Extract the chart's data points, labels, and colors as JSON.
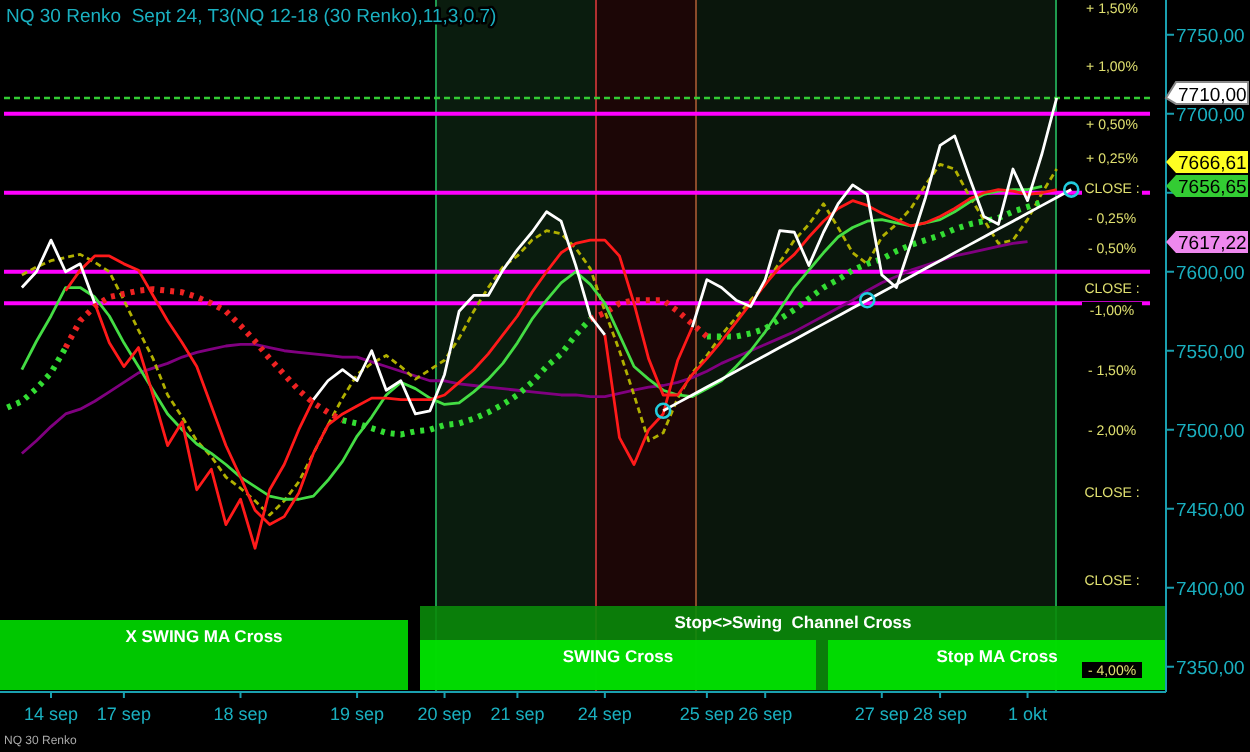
{
  "chart_data": {
    "type": "line",
    "title": "NQ 30 Renko  Sept 24, T3(NQ 12-18 (30 Renko),11,3,0.7)",
    "categories": [
      null,
      null,
      null,
      "14 sep",
      null,
      null,
      null,
      null,
      "17 sep",
      null,
      null,
      null,
      null,
      null,
      null,
      null,
      "18 sep",
      null,
      null,
      null,
      null,
      null,
      null,
      null,
      "19 sep",
      null,
      null,
      null,
      null,
      null,
      "20 sep",
      null,
      null,
      null,
      null,
      "21 sep",
      null,
      null,
      null,
      null,
      null,
      "24 sep",
      null,
      null,
      null,
      null,
      null,
      null,
      "25 sep",
      null,
      null,
      null,
      "26 sep",
      null,
      null,
      null,
      null,
      null,
      null,
      null,
      "27 sep",
      null,
      null,
      null,
      "28 sep",
      null,
      null,
      null,
      null,
      null,
      "1 okt",
      null,
      null,
      null,
      null,
      null,
      null,
      null,
      null,
      null
    ],
    "ylim": [
      7334,
      7772
    ],
    "yticks": [
      {
        "value": 7350,
        "label": "7350,00"
      },
      {
        "value": 7400,
        "label": "7400,00"
      },
      {
        "value": 7450,
        "label": "7450,00"
      },
      {
        "value": 7500,
        "label": "7500,00"
      },
      {
        "value": 7550,
        "label": "7550,00"
      },
      {
        "value": 7600,
        "label": "7600,00"
      },
      {
        "value": 7650,
        "label": null
      },
      {
        "value": 7700,
        "label": "7700,00"
      },
      {
        "value": 7750,
        "label": "7750,00"
      }
    ],
    "series": [
      {
        "color": "#800080",
        "values": [
          null,
          7485,
          7493,
          7502,
          7510,
          7513,
          7518,
          7524,
          7530,
          7536,
          7539,
          7542,
          7546,
          7549,
          7551,
          7553,
          7554,
          7554,
          7552,
          7550,
          7549,
          7548,
          7547,
          7546,
          7546,
          7543,
          7540,
          7537,
          7534,
          7531,
          7531,
          7529,
          7528,
          7527,
          7526,
          7525,
          7524,
          7523,
          7522,
          7522,
          7521,
          7521,
          7523,
          7525,
          7527,
          7528,
          7530,
          7533,
          7537,
          7542,
          7546,
          7550,
          7554,
          7558,
          7562,
          7567,
          7572,
          7577,
          7582,
          7588,
          7593,
          7597,
          7601,
          7604,
          7607,
          7610,
          7612,
          7614,
          7616,
          7618,
          7619,
          null,
          null,
          null,
          null,
          null,
          null,
          null,
          null,
          null
        ]
      },
      {
        "color": "#b0b000",
        "line_style": "dashed",
        "values": [
          null,
          7598,
          7603,
          7607,
          7609,
          7611,
          7606,
          7600,
          7582,
          7563,
          7545,
          7522,
          7508,
          7493,
          7483,
          7470,
          7463,
          7455,
          7446,
          7455,
          7467,
          7485,
          7503,
          7520,
          7535,
          7542,
          7547,
          7540,
          7532,
          7538,
          7544,
          7558,
          7575,
          7590,
          7603,
          7610,
          7620,
          7626,
          7624,
          7615,
          7602,
          7575,
          7550,
          7522,
          7493,
          7498,
          7520,
          7536,
          7547,
          7560,
          7571,
          7582,
          7592,
          7606,
          7620,
          7630,
          7643,
          7628,
          7612,
          7605,
          7622,
          7630,
          7640,
          7655,
          7668,
          7665,
          7648,
          7633,
          7618,
          7620,
          7633,
          7650,
          7665,
          null,
          null,
          null,
          null,
          null,
          null,
          null
        ]
      },
      {
        "color": "#33dd33",
        "line_style": "dotted",
        "values": [
          7514,
          7518,
          7526,
          7536,
          7552,
          null,
          null,
          null,
          null,
          null,
          null,
          null,
          null,
          null,
          null,
          null,
          null,
          null,
          null,
          null,
          null,
          null,
          null,
          7506,
          7504,
          7501,
          7498,
          7497,
          7499,
          7500,
          7503,
          7504,
          7507,
          7511,
          7516,
          7522,
          7530,
          7540,
          7548,
          7560,
          7570,
          null,
          null,
          null,
          null,
          null,
          null,
          null,
          7559,
          7559,
          7559,
          7561,
          7564,
          7570,
          7576,
          7583,
          7590,
          7595,
          7601,
          7605,
          7608,
          7613,
          7617,
          7620,
          7623,
          7627,
          7630,
          7632,
          7634,
          7638,
          7641,
          7644,
          null,
          null,
          null,
          null,
          null,
          null,
          null,
          null
        ]
      },
      {
        "color": "#ee2222",
        "line_style": "dotted",
        "values": [
          null,
          null,
          null,
          null,
          7552,
          7569,
          7578,
          7584,
          7586,
          7588,
          7589,
          7588,
          7587,
          7584,
          7580,
          7575,
          7566,
          7556,
          7545,
          7535,
          7525,
          7517,
          7511,
          7506,
          null,
          null,
          null,
          null,
          null,
          null,
          null,
          null,
          null,
          null,
          null,
          null,
          null,
          null,
          null,
          null,
          7570,
          7574,
          7580,
          7582,
          7582,
          7582,
          7575,
          7567,
          7559,
          null,
          null,
          null,
          null,
          null,
          null,
          null,
          null,
          null,
          null,
          null,
          null,
          null,
          null,
          null,
          null,
          null,
          null,
          null,
          null,
          null,
          null,
          null,
          null,
          null,
          null,
          null,
          null,
          null,
          null,
          null
        ]
      },
      {
        "color": "#44dd44",
        "values": [
          null,
          7538,
          7556,
          7572,
          7590,
          7590,
          7584,
          7572,
          7555,
          7540,
          7525,
          7510,
          7500,
          7491,
          7485,
          7478,
          7470,
          7464,
          7458,
          7456,
          7456,
          7458,
          7468,
          7480,
          7496,
          7508,
          7522,
          7530,
          7526,
          7520,
          7516,
          7517,
          7524,
          7532,
          7542,
          7555,
          7570,
          7582,
          7593,
          7600,
          7592,
          7580,
          7560,
          7540,
          7532,
          7525,
          7522,
          7521,
          7526,
          7531,
          7540,
          7550,
          7562,
          7576,
          7590,
          7601,
          7612,
          7622,
          7628,
          7632,
          7633,
          7631,
          7629,
          7631,
          7633,
          7638,
          7644,
          7649,
          7651,
          7652,
          7652,
          7654,
          null,
          null,
          null,
          null,
          null,
          null,
          null,
          null
        ]
      },
      {
        "color": "#ff1a1a",
        "values": [
          null,
          null,
          null,
          null,
          7588,
          7601,
          7610,
          7610,
          7605,
          7601,
          7585,
          7569,
          7555,
          7540,
          7515,
          7490,
          7470,
          7449,
          7440,
          7445,
          7460,
          7485,
          7503,
          7510,
          7515,
          7520,
          7520,
          7519,
          7519,
          7519,
          7522,
          7530,
          7538,
          7548,
          7560,
          7572,
          7587,
          7600,
          7612,
          7618,
          7620,
          7620,
          7610,
          7580,
          7545,
          7522,
          7522,
          7535,
          7545,
          7556,
          7568,
          7580,
          7592,
          7603,
          7611,
          7622,
          7632,
          7640,
          7645,
          7642,
          7637,
          7633,
          7629,
          7631,
          7635,
          7640,
          7646,
          7650,
          7652,
          7651,
          7649,
          7650,
          7652,
          null,
          null,
          null,
          null,
          null,
          null,
          null
        ]
      },
      {
        "color": "#ff1a1a",
        "values": [
          null,
          null,
          null,
          null,
          null,
          null,
          7580,
          7555,
          7540,
          7552,
          7522,
          7490,
          7505,
          7462,
          7475,
          7440,
          7456,
          7425,
          7462,
          7478,
          7500,
          7519,
          null,
          null,
          null,
          null,
          null,
          null,
          null,
          null,
          null,
          null,
          null,
          null,
          null,
          null,
          null,
          null,
          null,
          null,
          null,
          7560,
          7495,
          7478,
          7500,
          7510,
          7544,
          7565,
          null,
          null,
          null,
          null,
          null,
          null,
          null,
          null,
          null,
          null,
          null,
          null,
          null,
          null,
          null,
          null,
          null,
          null,
          null,
          null,
          null,
          null,
          null,
          null,
          null,
          null,
          null,
          null,
          null,
          null,
          null,
          null
        ]
      },
      {
        "color": "#ffffff",
        "values": [
          null,
          7590,
          7600,
          7620,
          7600,
          7605,
          7580,
          null,
          null,
          null,
          null,
          null,
          null,
          null,
          null,
          null,
          null,
          null,
          null,
          null,
          null,
          7519,
          7531,
          7538,
          7531,
          7550,
          7525,
          7531,
          7510,
          7512,
          7535,
          7575,
          7585,
          7585,
          7601,
          7614,
          7625,
          7638,
          7632,
          7604,
          7572,
          7560,
          null,
          null,
          null,
          null,
          null,
          7565,
          7595,
          7590,
          7582,
          7578,
          7595,
          7626,
          7625,
          7604,
          7625,
          7643,
          7655,
          7649,
          7598,
          7590,
          7618,
          7647,
          7680,
          7686,
          7660,
          7635,
          7630,
          7665,
          7645,
          7675,
          7710,
          null,
          null,
          null,
          null,
          null,
          null,
          null
        ]
      },
      {
        "color": "#ffffff",
        "values": [
          null,
          null,
          null,
          null,
          null,
          null,
          null,
          null,
          null,
          null,
          null,
          null,
          null,
          null,
          null,
          null,
          null,
          null,
          null,
          null,
          null,
          null,
          null,
          null,
          null,
          null,
          null,
          null,
          null,
          null,
          null,
          null,
          null,
          null,
          null,
          null,
          null,
          null,
          null,
          null,
          null,
          null,
          null,
          null,
          null,
          7512,
          7517,
          7522,
          7527,
          7532,
          7537,
          7542,
          7547,
          7552,
          7557,
          7562,
          7567,
          7572,
          7577,
          7582,
          7587,
          7592,
          7597,
          7602,
          7607,
          7612,
          7617,
          7622,
          7627,
          7632,
          7637,
          7642,
          7647,
          7652,
          null,
          null,
          null,
          null,
          null,
          null
        ]
      }
    ],
    "ref_lines": [
      {
        "axis": "y",
        "value": 7710,
        "label": "7710,00",
        "color": "#33cc33",
        "line_style": "dashed"
      },
      {
        "axis": "y",
        "value": 7700,
        "color": "#ff00ff"
      },
      {
        "axis": "y",
        "value": 7650,
        "color": "#ff00ff"
      },
      {
        "axis": "y",
        "value": 7600,
        "color": "#ff00ff"
      },
      {
        "axis": "y",
        "value": 7580,
        "color": "#ff00ff"
      }
    ],
    "annotations": [
      "X SWING MA Cross",
      "Stop<>Swing  Channel Cross",
      "SWING Cross",
      "Stop MA Cross",
      "NQ 30 Renko",
      "+ 1,50%",
      "+ 1,00%",
      "+ 0,50%",
      "+ 0,25%",
      "CLOSE :",
      "- 0,25%",
      "- 0,50%",
      "CLOSE :",
      "-1,00%",
      "- 1,50%",
      "- 2,00%",
      "CLOSE :",
      "CLOSE :",
      "- 4,00%",
      "7666,61",
      "7656,65",
      "7617,22"
    ]
  }
}
